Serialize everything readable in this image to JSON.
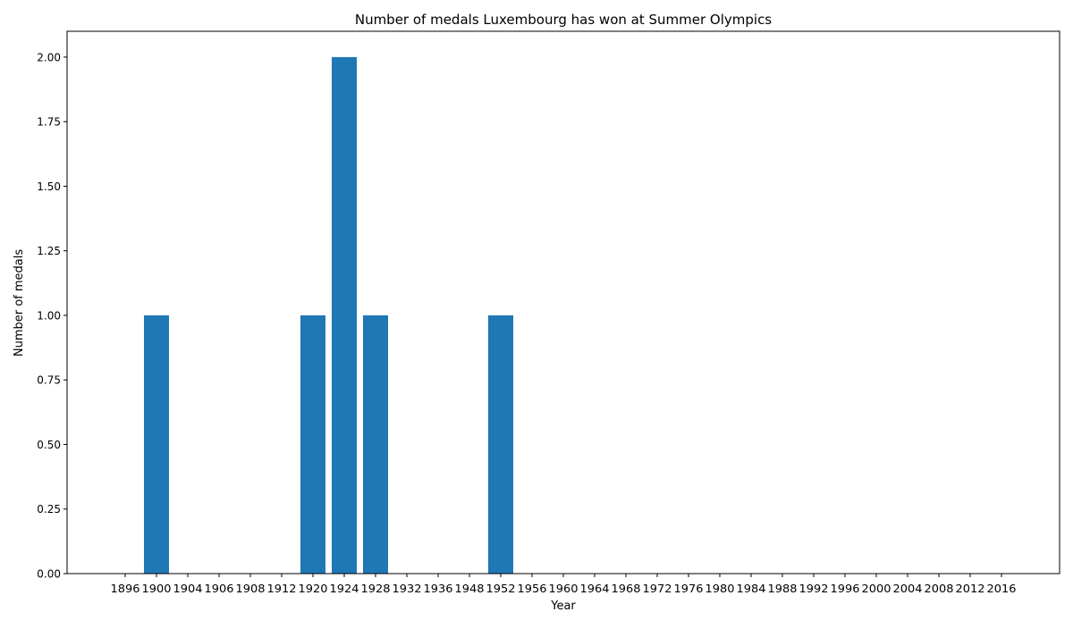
{
  "chart_data": {
    "type": "bar",
    "title": "Number of medals Luxembourg has won at Summer Olympics",
    "xlabel": "Year",
    "ylabel": "Number of medals",
    "categories": [
      "1896",
      "1900",
      "1904",
      "1906",
      "1908",
      "1912",
      "1920",
      "1924",
      "1928",
      "1932",
      "1936",
      "1948",
      "1952",
      "1956",
      "1960",
      "1964",
      "1968",
      "1972",
      "1976",
      "1980",
      "1984",
      "1988",
      "1992",
      "1996",
      "2000",
      "2004",
      "2008",
      "2012",
      "2016"
    ],
    "values": [
      0,
      1,
      0,
      0,
      0,
      0,
      1,
      2,
      1,
      0,
      0,
      0,
      1,
      0,
      0,
      0,
      0,
      0,
      0,
      0,
      0,
      0,
      0,
      0,
      0,
      0,
      0,
      0,
      0
    ],
    "ylim": [
      0,
      2.1
    ],
    "yticks": [
      "0.00",
      "0.25",
      "0.50",
      "0.75",
      "1.00",
      "1.25",
      "1.50",
      "1.75",
      "2.00"
    ],
    "grid": false,
    "bar_color": "#1f77b4"
  }
}
